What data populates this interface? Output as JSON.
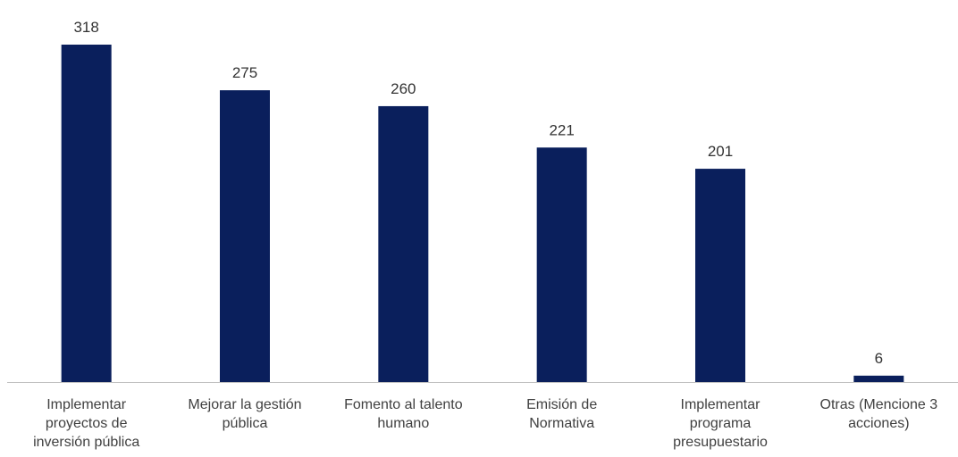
{
  "chart_data": {
    "type": "bar",
    "title": "",
    "xlabel": "",
    "ylabel": "",
    "categories": [
      "Implementar proyectos de inversión pública",
      "Mejorar la gestión pública",
      "Fomento al talento humano",
      "Emisión de Normativa",
      "Implementar programa presupuestario",
      "Otras (Mencione 3 acciones)"
    ],
    "category_lines": [
      [
        "Implementar",
        "proyectos de",
        "inversión pública"
      ],
      [
        "Mejorar la gestión",
        "pública"
      ],
      [
        "Fomento al talento",
        "humano"
      ],
      [
        "Emisión de",
        "Normativa"
      ],
      [
        "Implementar",
        "programa",
        "presupuestario"
      ],
      [
        "Otras (Mencione 3",
        "acciones)"
      ]
    ],
    "values": [
      318,
      275,
      260,
      221,
      201,
      6
    ],
    "value_labels": [
      "318",
      "275",
      "260",
      "221",
      "201",
      "6"
    ],
    "ylim": [
      0,
      318
    ],
    "bar_color": "#0a1f5c",
    "axis_color": "#bfbfbf",
    "grid": false,
    "legend": "none"
  }
}
